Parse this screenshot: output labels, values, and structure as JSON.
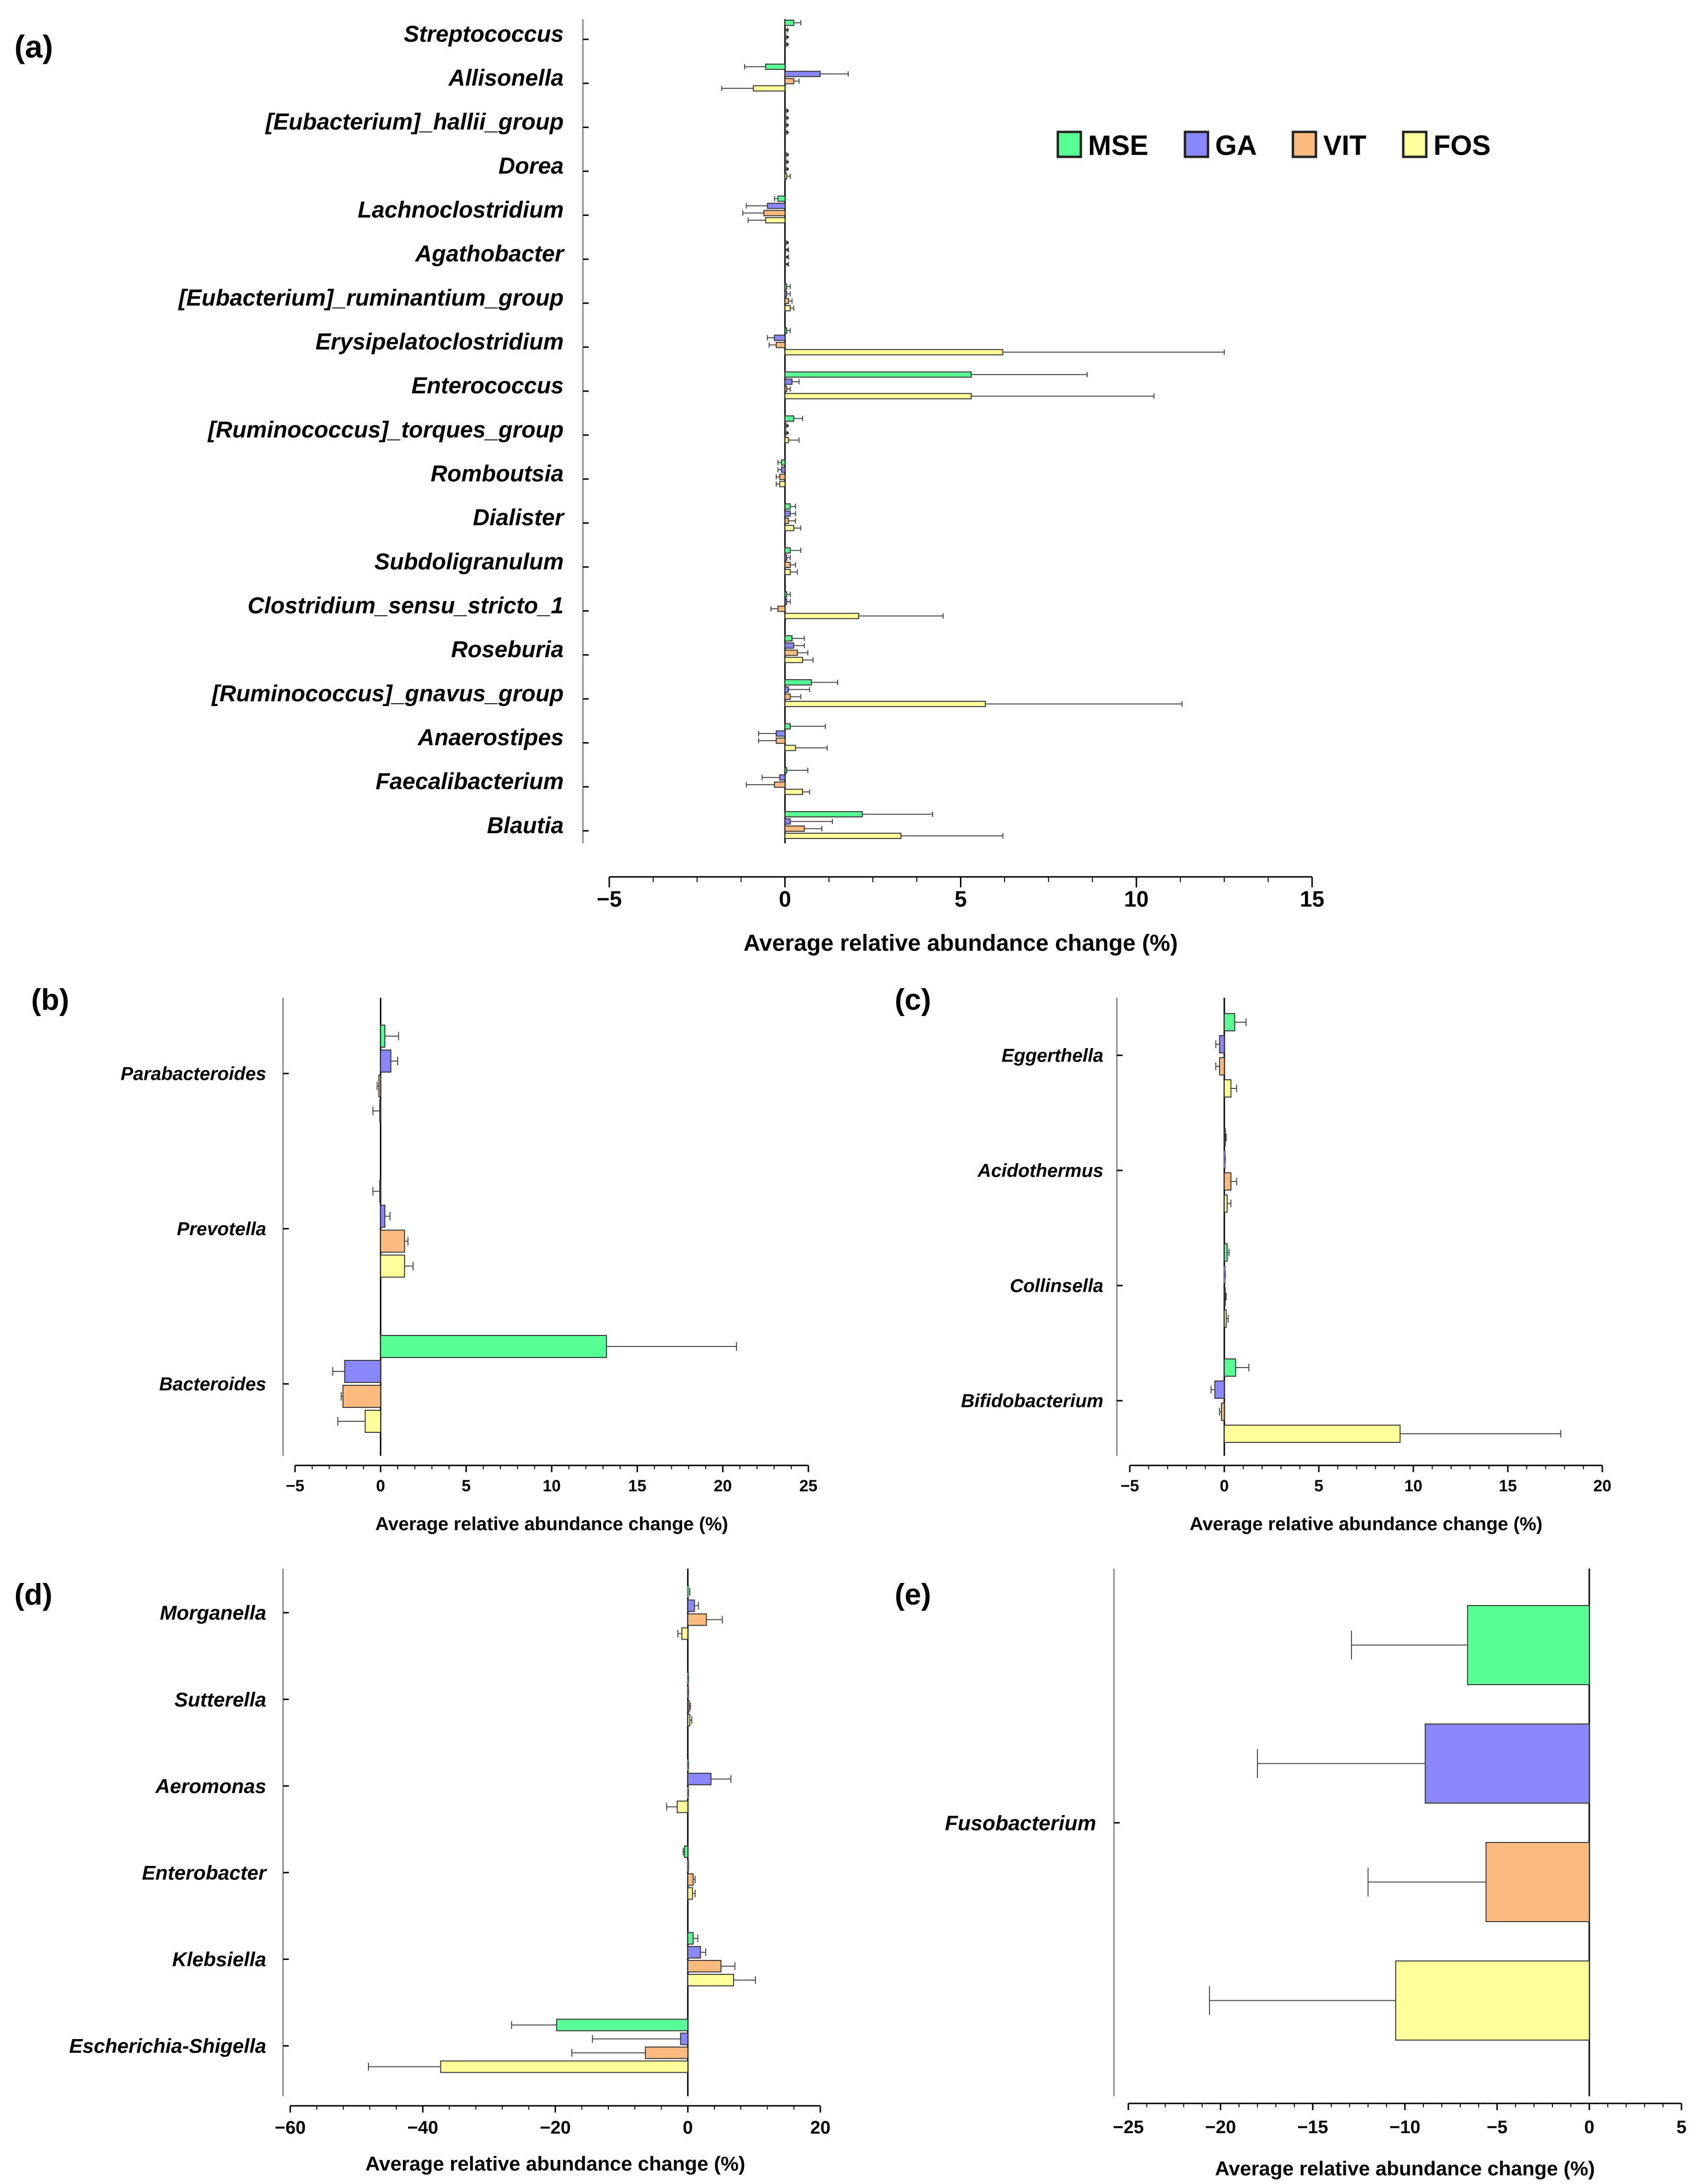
{
  "colors": {
    "MSE": "#57FF94",
    "GA": "#8A87FA",
    "VIT": "#FCBB7E",
    "FOS": "#FFFF99"
  },
  "legend": [
    "MSE",
    "GA",
    "VIT",
    "FOS"
  ],
  "chart_data": [
    {
      "id": "a",
      "type": "bar",
      "orientation": "horizontal",
      "panel_label": "(a)",
      "xlabel": "Average relative abundance change (%)",
      "xlim": [
        -5,
        15
      ],
      "xticks": [
        -5,
        0,
        5,
        10,
        15
      ],
      "xtick_labels": [
        "−5",
        "0",
        "5",
        "10",
        "15"
      ],
      "series_names": [
        "MSE",
        "GA",
        "VIT",
        "FOS"
      ],
      "categories": [
        "Streptococcus",
        "Allisonella",
        "[Eubacterium]_hallii_group",
        "Dorea",
        "Lachnoclostridium",
        "Agathobacter",
        "[Eubacterium]_ruminantium_group",
        "Erysipelatoclostridium",
        "Enterococcus",
        "[Ruminococcus]_torques_group",
        "Romboutsia",
        "Dialister",
        "Subdoligranulum",
        "Clostridium_sensu_stricto_1",
        "Roseburia",
        "[Ruminococcus]_gnavus_group",
        "Anaerostipes",
        "Faecalibacterium",
        "Blautia"
      ],
      "values": [
        [
          0.25,
          0.02,
          0.0,
          0.0
        ],
        [
          -0.55,
          1.0,
          0.25,
          -0.9
        ],
        [
          0.0,
          0.0,
          0.0,
          0.0
        ],
        [
          0.0,
          0.0,
          0.0,
          0.05
        ],
        [
          -0.2,
          -0.5,
          -0.6,
          -0.55
        ],
        [
          0.0,
          0.0,
          0.0,
          0.0
        ],
        [
          0.05,
          0.05,
          0.1,
          0.15
        ],
        [
          0.05,
          -0.3,
          -0.25,
          6.2
        ],
        [
          5.3,
          0.2,
          0.05,
          5.3
        ],
        [
          0.25,
          0.0,
          0.0,
          0.1
        ],
        [
          -0.1,
          -0.1,
          -0.15,
          -0.15
        ],
        [
          0.15,
          0.15,
          0.1,
          0.25
        ],
        [
          0.15,
          0.05,
          0.15,
          0.15
        ],
        [
          0.05,
          0.05,
          -0.2,
          2.1
        ],
        [
          0.2,
          0.25,
          0.35,
          0.5
        ],
        [
          0.75,
          0.1,
          0.15,
          5.7
        ],
        [
          0.15,
          -0.25,
          -0.25,
          0.3
        ],
        [
          0.05,
          -0.15,
          -0.3,
          0.5
        ],
        [
          2.2,
          0.15,
          0.55,
          3.3
        ]
      ],
      "errors": [
        [
          0.2,
          0.05,
          0.05,
          0.05
        ],
        [
          0.6,
          0.8,
          0.15,
          0.9
        ],
        [
          0.05,
          0.05,
          0.05,
          0.05
        ],
        [
          0.05,
          0.05,
          0.05,
          0.1
        ],
        [
          0.1,
          0.6,
          0.6,
          0.5
        ],
        [
          0.05,
          0.1,
          0.1,
          0.1
        ],
        [
          0.1,
          0.1,
          0.1,
          0.1
        ],
        [
          0.1,
          0.2,
          0.2,
          6.3
        ],
        [
          3.3,
          0.2,
          0.1,
          5.2
        ],
        [
          0.25,
          0.05,
          0.05,
          0.3
        ],
        [
          0.1,
          0.1,
          0.1,
          0.1
        ],
        [
          0.15,
          0.15,
          0.2,
          0.2
        ],
        [
          0.3,
          0.1,
          0.15,
          0.2
        ],
        [
          0.1,
          0.1,
          0.2,
          2.4
        ],
        [
          0.35,
          0.3,
          0.3,
          0.3
        ],
        [
          0.75,
          0.6,
          0.3,
          5.6
        ],
        [
          1.0,
          0.5,
          0.5,
          0.9
        ],
        [
          0.6,
          0.5,
          0.8,
          0.2
        ],
        [
          2.0,
          1.2,
          0.5,
          2.9
        ]
      ]
    },
    {
      "id": "b",
      "type": "bar",
      "orientation": "horizontal",
      "panel_label": "(b)",
      "xlabel": "Average relative abundance change (%)",
      "xlim": [
        -5,
        25
      ],
      "xticks": [
        -5,
        0,
        5,
        10,
        15,
        20,
        25
      ],
      "xtick_labels": [
        "−5",
        "0",
        "5",
        "10",
        "15",
        "20",
        "25"
      ],
      "series_names": [
        "MSE",
        "GA",
        "VIT",
        "FOS"
      ],
      "categories": [
        "Parabacteroides",
        "Prevotella",
        "Bacteroides"
      ],
      "values": [
        [
          0.25,
          0.6,
          -0.1,
          -0.05
        ],
        [
          -0.05,
          0.25,
          1.4,
          1.4
        ],
        [
          13.2,
          -2.1,
          -2.2,
          -0.9
        ]
      ],
      "errors": [
        [
          0.8,
          0.4,
          0.1,
          0.4
        ],
        [
          0.4,
          0.3,
          0.2,
          0.5
        ],
        [
          7.6,
          0.7,
          0.1,
          1.6
        ]
      ]
    },
    {
      "id": "c",
      "type": "bar",
      "orientation": "horizontal",
      "panel_label": "(c)",
      "xlabel": "Average relative abundance change (%)",
      "xlim": [
        -5,
        20
      ],
      "xticks": [
        -5,
        0,
        5,
        10,
        15,
        20
      ],
      "xtick_labels": [
        "−5",
        "0",
        "5",
        "10",
        "15",
        "20"
      ],
      "series_names": [
        "MSE",
        "GA",
        "VIT",
        "FOS"
      ],
      "categories": [
        "Eggerthella",
        "Acidothermus",
        "Collinsella",
        "Bifidobacterium"
      ],
      "values": [
        [
          0.55,
          -0.25,
          -0.25,
          0.35
        ],
        [
          0.05,
          0.0,
          0.35,
          0.15
        ],
        [
          0.15,
          0.0,
          0.05,
          0.1
        ],
        [
          0.6,
          -0.5,
          -0.15,
          9.3
        ]
      ],
      "errors": [
        [
          0.6,
          0.2,
          0.2,
          0.3
        ],
        [
          0.05,
          0.05,
          0.3,
          0.2
        ],
        [
          0.1,
          0.05,
          0.05,
          0.1
        ],
        [
          0.7,
          0.2,
          0.1,
          8.5
        ]
      ]
    },
    {
      "id": "d",
      "type": "bar",
      "orientation": "horizontal",
      "panel_label": "(d)",
      "xlabel": "Average relative abundance change (%)",
      "xlim": [
        -60,
        20
      ],
      "xticks": [
        -60,
        -40,
        -20,
        0,
        20
      ],
      "xtick_labels": [
        "−60",
        "−40",
        "−20",
        "0",
        "20"
      ],
      "series_names": [
        "MSE",
        "GA",
        "VIT",
        "FOS"
      ],
      "categories": [
        "Morganella",
        "Sutterella",
        "Aeromonas",
        "Enterobacter",
        "Klebsiella",
        "Escherichia-Shigella"
      ],
      "values": [
        [
          0.1,
          1.0,
          2.8,
          -0.9
        ],
        [
          0.0,
          0.0,
          0.2,
          0.3
        ],
        [
          0.0,
          3.5,
          0.0,
          -1.6
        ],
        [
          -0.5,
          0.0,
          0.8,
          0.7
        ],
        [
          0.8,
          1.9,
          5.0,
          6.9
        ],
        [
          -19.8,
          -1.1,
          -6.4,
          -37.3
        ]
      ],
      "errors": [
        [
          0.2,
          0.6,
          2.4,
          0.6
        ],
        [
          0.1,
          0.1,
          0.2,
          0.3
        ],
        [
          0.1,
          3.0,
          0.1,
          1.6
        ],
        [
          0.2,
          0.1,
          0.3,
          0.4
        ],
        [
          0.7,
          0.8,
          2.1,
          3.3
        ],
        [
          6.8,
          13.3,
          11.1,
          10.9
        ]
      ]
    },
    {
      "id": "e",
      "type": "bar",
      "orientation": "horizontal",
      "panel_label": "(e)",
      "xlabel": "Average relative abundance change (%)",
      "xlim": [
        -25,
        5
      ],
      "xticks": [
        -25,
        -20,
        -15,
        -10,
        -5,
        0,
        5
      ],
      "xtick_labels": [
        "−25",
        "−20",
        "−15",
        "−10",
        "−5",
        "0",
        "5"
      ],
      "series_names": [
        "MSE",
        "GA",
        "VIT",
        "FOS"
      ],
      "categories": [
        "Fusobacterium"
      ],
      "values": [
        [
          -6.6,
          -8.9,
          -5.6,
          -10.5
        ]
      ],
      "errors": [
        [
          6.3,
          9.1,
          6.4,
          10.1
        ]
      ]
    }
  ]
}
